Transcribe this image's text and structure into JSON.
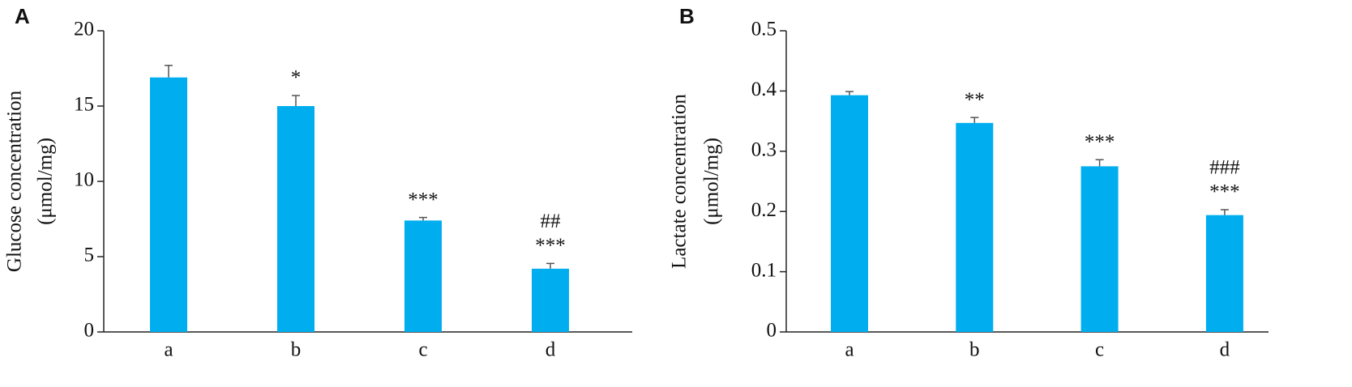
{
  "chart_data": [
    {
      "type": "bar",
      "panel": "A",
      "ylabel": [
        "Glucose concentration",
        "(μmol/mg)"
      ],
      "categories": [
        "a",
        "b",
        "c",
        "d"
      ],
      "values": [
        16.9,
        15.0,
        7.4,
        4.2
      ],
      "errors": [
        0.8,
        0.7,
        0.2,
        0.35
      ],
      "annotations": [
        null,
        [
          "*"
        ],
        [
          "***"
        ],
        [
          "##",
          "***"
        ]
      ],
      "color": "#00aeef",
      "error_color": "#555555",
      "ylim": [
        0,
        20
      ],
      "yticks": [
        0,
        5,
        10,
        15,
        20
      ]
    },
    {
      "type": "bar",
      "panel": "B",
      "ylabel": [
        "Lactate concentration",
        "(μmol/mg)"
      ],
      "categories": [
        "a",
        "b",
        "c",
        "d"
      ],
      "values": [
        0.393,
        0.347,
        0.275,
        0.194
      ],
      "errors": [
        0.006,
        0.009,
        0.011,
        0.009
      ],
      "annotations": [
        null,
        [
          "**"
        ],
        [
          "***"
        ],
        [
          "###",
          "***"
        ]
      ],
      "color": "#00aeef",
      "error_color": "#555555",
      "ylim": [
        0,
        0.5
      ],
      "yticks": [
        0,
        0.1,
        0.2,
        0.3,
        0.4,
        0.5
      ]
    }
  ]
}
